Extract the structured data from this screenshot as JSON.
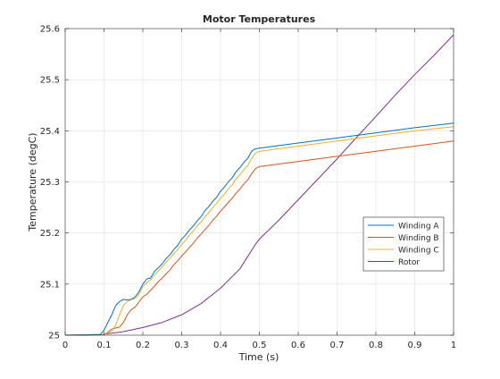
{
  "chart_data": {
    "type": "line",
    "title": "Motor Temperatures",
    "xlabel": "Time (s)",
    "ylabel": "Temperature (degC)",
    "xlim": [
      0,
      1
    ],
    "ylim": [
      25,
      25.6
    ],
    "xticks": [
      0,
      0.1,
      0.2,
      0.3,
      0.4,
      0.5,
      0.6,
      0.7,
      0.8,
      0.9,
      1
    ],
    "xtick_labels": [
      "0",
      "0.1",
      "0.2",
      "0.3",
      "0.4",
      "0.5",
      "0.6",
      "0.7",
      "0.8",
      "0.9",
      "1"
    ],
    "yticks": [
      25,
      25.1,
      25.2,
      25.3,
      25.4,
      25.5,
      25.6
    ],
    "ytick_labels": [
      "25",
      "25.1",
      "25.2",
      "25.3",
      "25.4",
      "25.5",
      "25.6"
    ],
    "grid": true,
    "legend_position": "lower-right",
    "series": [
      {
        "name": "Winding A",
        "color": "#0072BD",
        "x": [
          0,
          0.09,
          0.1,
          0.12,
          0.13,
          0.14,
          0.15,
          0.16,
          0.17,
          0.18,
          0.19,
          0.2,
          0.21,
          0.22,
          0.23,
          0.24,
          0.25,
          0.26,
          0.27,
          0.28,
          0.29,
          0.3,
          0.31,
          0.32,
          0.33,
          0.34,
          0.35,
          0.36,
          0.37,
          0.38,
          0.39,
          0.4,
          0.41,
          0.42,
          0.43,
          0.44,
          0.45,
          0.46,
          0.47,
          0.48,
          0.49,
          0.5,
          0.6,
          0.7,
          0.8,
          0.9,
          1
        ],
        "y": [
          25,
          25.001,
          25.01,
          25.04,
          25.058,
          25.066,
          25.07,
          25.069,
          25.07,
          25.075,
          25.085,
          25.1,
          25.11,
          25.112,
          25.125,
          25.132,
          25.14,
          25.15,
          25.158,
          25.168,
          25.176,
          25.188,
          25.196,
          25.206,
          25.214,
          25.224,
          25.232,
          25.244,
          25.252,
          25.262,
          25.27,
          25.282,
          25.29,
          25.3,
          25.308,
          25.32,
          25.328,
          25.338,
          25.346,
          25.36,
          25.365,
          25.366,
          25.376,
          25.386,
          25.396,
          25.406,
          25.415
        ]
      },
      {
        "name": "Winding B",
        "color": "#D95319",
        "x": [
          0,
          0.1,
          0.11,
          0.12,
          0.13,
          0.14,
          0.15,
          0.16,
          0.17,
          0.18,
          0.19,
          0.2,
          0.21,
          0.22,
          0.23,
          0.24,
          0.25,
          0.26,
          0.27,
          0.28,
          0.29,
          0.3,
          0.31,
          0.32,
          0.33,
          0.34,
          0.35,
          0.36,
          0.37,
          0.38,
          0.39,
          0.4,
          0.41,
          0.42,
          0.43,
          0.44,
          0.45,
          0.46,
          0.47,
          0.48,
          0.49,
          0.5,
          0.6,
          0.7,
          0.8,
          0.9,
          1
        ],
        "y": [
          25,
          25.001,
          25.006,
          25.012,
          25.014,
          25.016,
          25.025,
          25.04,
          25.05,
          25.055,
          25.065,
          25.075,
          25.08,
          25.088,
          25.096,
          25.105,
          25.112,
          25.12,
          25.128,
          25.138,
          25.146,
          25.155,
          25.163,
          25.172,
          25.18,
          25.19,
          25.198,
          25.207,
          25.215,
          25.225,
          25.233,
          25.243,
          25.251,
          25.26,
          25.268,
          25.278,
          25.286,
          25.296,
          25.304,
          25.316,
          25.326,
          25.33,
          25.34,
          25.35,
          25.36,
          25.37,
          25.38
        ]
      },
      {
        "name": "Winding C",
        "color": "#EDB120",
        "x": [
          0,
          0.1,
          0.12,
          0.13,
          0.14,
          0.15,
          0.16,
          0.17,
          0.18,
          0.19,
          0.2,
          0.21,
          0.22,
          0.23,
          0.24,
          0.25,
          0.26,
          0.27,
          0.28,
          0.29,
          0.3,
          0.31,
          0.32,
          0.33,
          0.34,
          0.35,
          0.36,
          0.37,
          0.38,
          0.39,
          0.4,
          0.41,
          0.42,
          0.43,
          0.44,
          0.45,
          0.46,
          0.47,
          0.48,
          0.49,
          0.5,
          0.6,
          0.7,
          0.8,
          0.9,
          1
        ],
        "y": [
          25,
          25.002,
          25.008,
          25.02,
          25.04,
          25.058,
          25.066,
          25.07,
          25.072,
          25.08,
          25.095,
          25.103,
          25.108,
          25.118,
          25.126,
          25.134,
          25.143,
          25.151,
          25.16,
          25.168,
          25.178,
          25.186,
          25.196,
          25.204,
          25.214,
          25.222,
          25.232,
          25.24,
          25.25,
          25.258,
          25.268,
          25.276,
          25.286,
          25.294,
          25.306,
          25.314,
          25.324,
          25.332,
          25.346,
          25.356,
          25.36,
          25.37,
          25.38,
          25.39,
          25.4,
          25.408
        ]
      },
      {
        "name": "Rotor",
        "color": "#7E2F8E",
        "x": [
          0,
          0.05,
          0.1,
          0.15,
          0.2,
          0.25,
          0.3,
          0.35,
          0.4,
          0.45,
          0.49,
          0.5,
          0.55,
          0.6,
          0.65,
          0.7,
          0.75,
          0.8,
          0.85,
          0.9,
          0.95,
          1
        ],
        "y": [
          25,
          25,
          25.002,
          25.007,
          25.015,
          25.025,
          25.04,
          25.062,
          25.092,
          25.13,
          25.178,
          25.188,
          25.225,
          25.265,
          25.305,
          25.345,
          25.387,
          25.428,
          25.47,
          25.51,
          25.548,
          25.588
        ]
      }
    ]
  }
}
